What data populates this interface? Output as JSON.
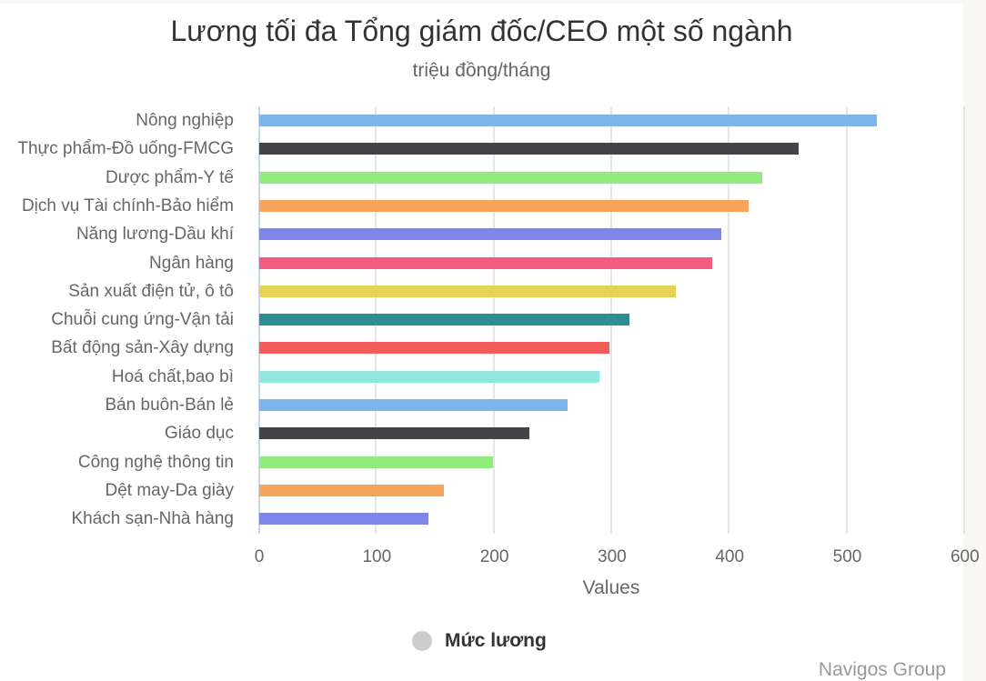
{
  "chart_data": {
    "type": "bar",
    "orientation": "horizontal",
    "title": "Lương tối đa Tổng giám đốc/CEO một số ngành",
    "subtitle": "triệu đồng/tháng",
    "xlabel": "Values",
    "ylabel": "",
    "xlim": [
      0,
      600
    ],
    "x_ticks": [
      "0",
      "100",
      "200",
      "300",
      "400",
      "500",
      "600"
    ],
    "grid": true,
    "legend": {
      "position": "bottom",
      "entries": [
        "Mức lương"
      ]
    },
    "categories": [
      "Nông nghiệp",
      "Thực phẩm-Đồ uống-FMCG",
      "Dược phẩm-Y tế",
      "Dịch vụ Tài chính-Bảo hiểm",
      "Năng lương-Dầu khí",
      "Ngân hàng",
      "Sản xuất điện tử, ô tô",
      "Chuỗi cung ứng-Vận tải",
      "Bất động sản-Xây dựng",
      "Hoá chất,bao bì",
      "Bán buôn-Bán lẻ",
      "Giáo dục",
      "Công nghệ thông tin",
      "Dệt may-Da giày",
      "Khách sạn-Nhà hàng"
    ],
    "series": [
      {
        "name": "Mức lương",
        "values": [
          525,
          459,
          428,
          416,
          393,
          385,
          354,
          315,
          298,
          289,
          262,
          230,
          199,
          157,
          144
        ]
      }
    ],
    "colors": [
      "#7cb5ec",
      "#434348",
      "#90ed7d",
      "#f7a35c",
      "#8085e9",
      "#f15c80",
      "#e4d354",
      "#2b908f",
      "#f45b5b",
      "#91e8e1",
      "#7cb5ec",
      "#434348",
      "#90ed7d",
      "#f7a35c",
      "#8085e9"
    ]
  },
  "credits": "Navigos Group"
}
